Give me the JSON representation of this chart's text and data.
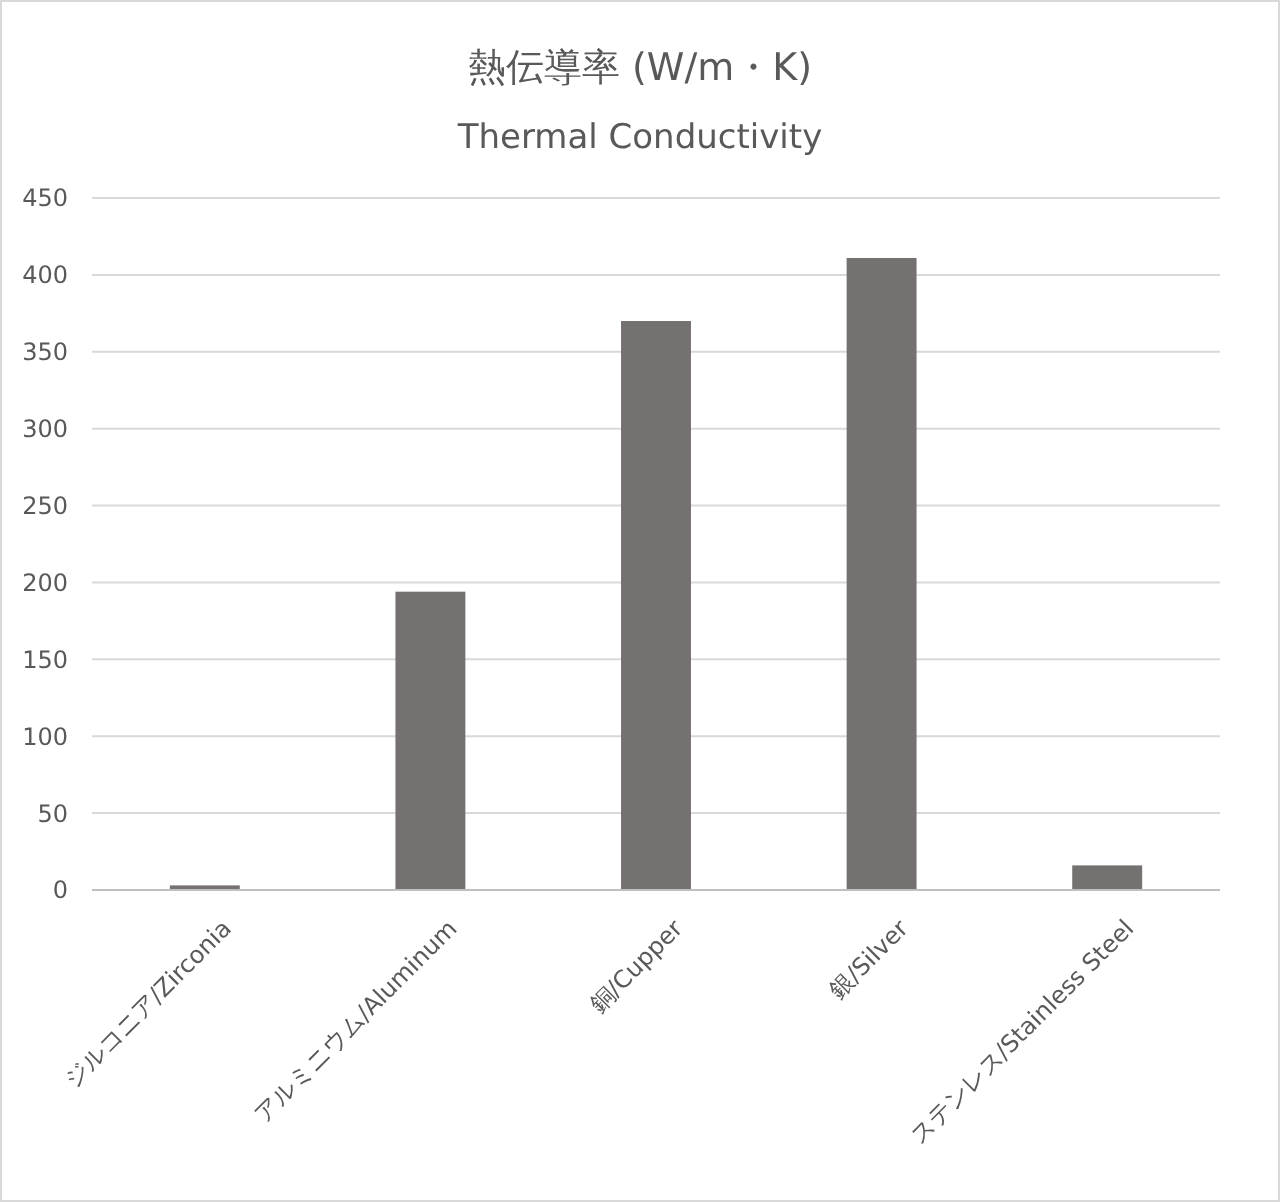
{
  "chart_data": {
    "type": "bar",
    "title": "熱伝導率 (W/m・K)",
    "subtitle": "Thermal Conductivity",
    "categories": [
      "ジルコニア/Zirconia",
      "アルミニウム/Aluminum",
      "銅/Cupper",
      "銀/Silver",
      "ステンレス/Stainless Steel"
    ],
    "values": [
      3,
      194,
      370,
      411,
      16
    ],
    "color": "#767171",
    "ylim": [
      0,
      450
    ],
    "yticks": [
      0,
      50,
      100,
      150,
      200,
      250,
      300,
      350,
      400,
      450
    ],
    "grid": "y"
  }
}
